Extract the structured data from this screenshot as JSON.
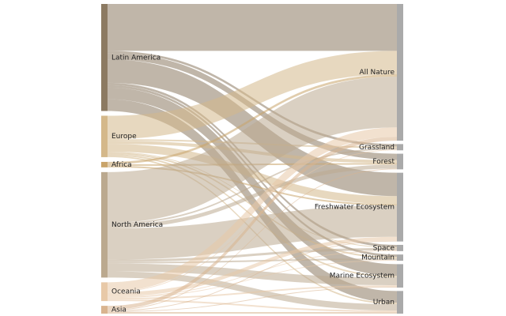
{
  "chart_data": {
    "type": "sankey",
    "nodes": [
      {
        "name": "Latin America",
        "color": "#8c7a62",
        "side": "left"
      },
      {
        "name": "Europe",
        "color": "#d4b88a",
        "side": "left"
      },
      {
        "name": "Africa",
        "color": "#c9a46a",
        "side": "left"
      },
      {
        "name": "North America",
        "color": "#bba98f",
        "side": "left"
      },
      {
        "name": "Oceania",
        "color": "#e8c9a8",
        "side": "left"
      },
      {
        "name": "Asia",
        "color": "#d9b48f",
        "side": "left"
      },
      {
        "name": "All Nature",
        "color": "#aaaaaa",
        "side": "right"
      },
      {
        "name": "Grassland",
        "color": "#aaaaaa",
        "side": "right"
      },
      {
        "name": "Forest",
        "color": "#aaaaaa",
        "side": "right"
      },
      {
        "name": "Freshwater Ecosystem",
        "color": "#aaaaaa",
        "side": "right"
      },
      {
        "name": "Space",
        "color": "#aaaaaa",
        "side": "right"
      },
      {
        "name": "Mountain",
        "color": "#aaaaaa",
        "side": "right"
      },
      {
        "name": "Marine Ecosystem",
        "color": "#aaaaaa",
        "side": "right"
      },
      {
        "name": "Urban",
        "color": "#aaaaaa",
        "side": "right"
      }
    ],
    "links": [
      {
        "source": 0,
        "target": 6,
        "value": 60
      },
      {
        "source": 0,
        "target": 7,
        "value": 3
      },
      {
        "source": 0,
        "target": 8,
        "value": 8
      },
      {
        "source": 0,
        "target": 9,
        "value": 30
      },
      {
        "source": 0,
        "target": 10,
        "value": 3
      },
      {
        "source": 0,
        "target": 11,
        "value": 3
      },
      {
        "source": 0,
        "target": 12,
        "value": 15
      },
      {
        "source": 0,
        "target": 13,
        "value": 15
      },
      {
        "source": 1,
        "target": 6,
        "value": 30
      },
      {
        "source": 1,
        "target": 7,
        "value": 2
      },
      {
        "source": 1,
        "target": 8,
        "value": 4
      },
      {
        "source": 1,
        "target": 9,
        "value": 10
      },
      {
        "source": 1,
        "target": 10,
        "value": 1
      },
      {
        "source": 1,
        "target": 11,
        "value": 2
      },
      {
        "source": 1,
        "target": 12,
        "value": 2
      },
      {
        "source": 1,
        "target": 13,
        "value": 2
      },
      {
        "source": 2,
        "target": 6,
        "value": 3
      },
      {
        "source": 2,
        "target": 8,
        "value": 2
      },
      {
        "source": 2,
        "target": 9,
        "value": 2
      },
      {
        "source": 3,
        "target": 6,
        "value": 65
      },
      {
        "source": 3,
        "target": 7,
        "value": 2
      },
      {
        "source": 3,
        "target": 8,
        "value": 5
      },
      {
        "source": 3,
        "target": 9,
        "value": 40
      },
      {
        "source": 3,
        "target": 10,
        "value": 3
      },
      {
        "source": 3,
        "target": 11,
        "value": 2
      },
      {
        "source": 3,
        "target": 12,
        "value": 10
      },
      {
        "source": 3,
        "target": 13,
        "value": 8
      },
      {
        "source": 4,
        "target": 6,
        "value": 12
      },
      {
        "source": 4,
        "target": 7,
        "value": 1
      },
      {
        "source": 4,
        "target": 9,
        "value": 5
      },
      {
        "source": 4,
        "target": 10,
        "value": 1
      },
      {
        "source": 4,
        "target": 11,
        "value": 1
      },
      {
        "source": 4,
        "target": 12,
        "value": 2
      },
      {
        "source": 4,
        "target": 13,
        "value": 2
      },
      {
        "source": 5,
        "target": 6,
        "value": 5
      },
      {
        "source": 5,
        "target": 8,
        "value": 1
      },
      {
        "source": 5,
        "target": 9,
        "value": 1
      },
      {
        "source": 5,
        "target": 12,
        "value": 1
      },
      {
        "source": 5,
        "target": 13,
        "value": 2
      }
    ]
  }
}
